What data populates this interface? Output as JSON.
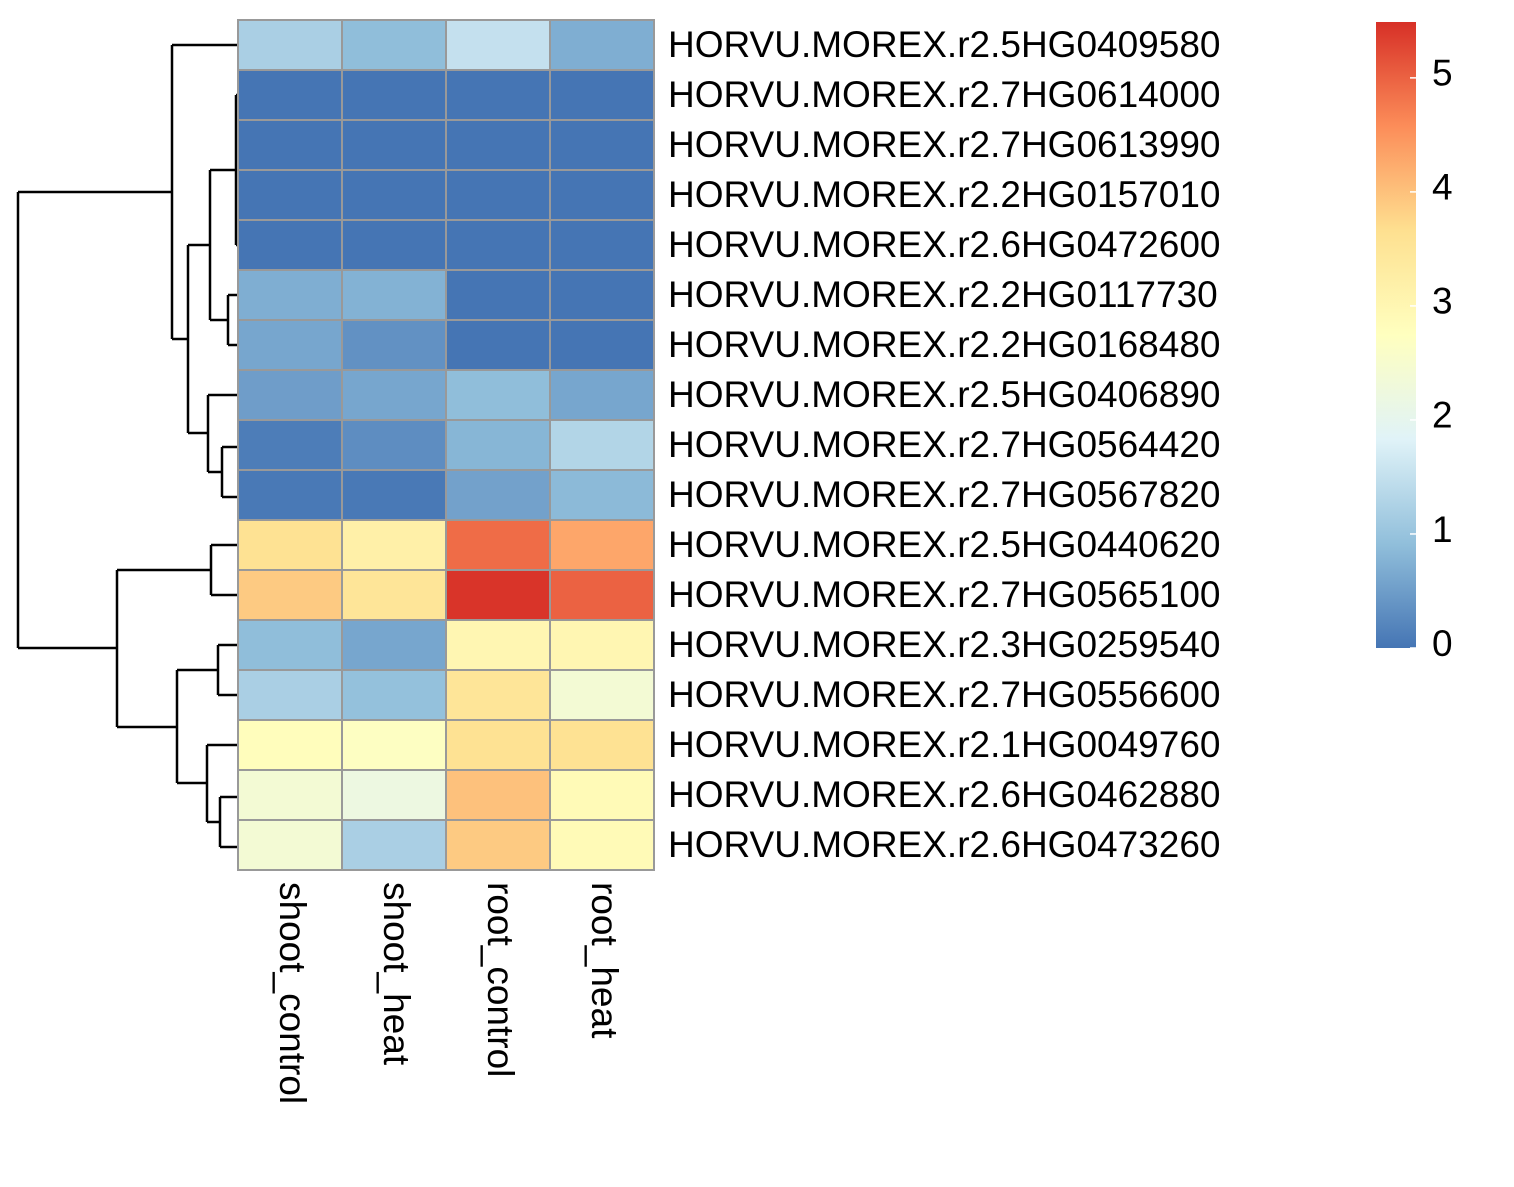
{
  "chart_data": {
    "type": "heatmap",
    "rows": [
      "HORVU.MOREX.r2.5HG0409580",
      "HORVU.MOREX.r2.7HG0614000",
      "HORVU.MOREX.r2.7HG0613990",
      "HORVU.MOREX.r2.2HG0157010",
      "HORVU.MOREX.r2.6HG0472600",
      "HORVU.MOREX.r2.2HG0117730",
      "HORVU.MOREX.r2.2HG0168480",
      "HORVU.MOREX.r2.5HG0406890",
      "HORVU.MOREX.r2.7HG0564420",
      "HORVU.MOREX.r2.7HG0567820",
      "HORVU.MOREX.r2.5HG0440620",
      "HORVU.MOREX.r2.7HG0565100",
      "HORVU.MOREX.r2.3HG0259540",
      "HORVU.MOREX.r2.7HG0556600",
      "HORVU.MOREX.r2.1HG0049760",
      "HORVU.MOREX.r2.6HG0462880",
      "HORVU.MOREX.r2.6HG0473260"
    ],
    "columns": [
      "shoot_control",
      "shoot_heat",
      "root_control",
      "root_heat"
    ],
    "values": [
      [
        1.2,
        0.9,
        1.5,
        0.7
      ],
      [
        0,
        0,
        0,
        0
      ],
      [
        0,
        0,
        0,
        0
      ],
      [
        0,
        0,
        0,
        0
      ],
      [
        0,
        0,
        0,
        0
      ],
      [
        0.7,
        0.75,
        0,
        0
      ],
      [
        0.6,
        0.35,
        0,
        0
      ],
      [
        0.5,
        0.6,
        0.9,
        0.6
      ],
      [
        0.1,
        0.3,
        0.8,
        1.3
      ],
      [
        0.05,
        0.05,
        0.55,
        0.85
      ],
      [
        3.6,
        3.2,
        4.9,
        4.3
      ],
      [
        3.9,
        3.5,
        5.45,
        5.0
      ],
      [
        0.9,
        0.6,
        3.0,
        3.0
      ],
      [
        1.2,
        0.95,
        3.5,
        2.4
      ],
      [
        2.8,
        2.7,
        3.6,
        3.6
      ],
      [
        2.4,
        2.2,
        4.0,
        2.9
      ],
      [
        2.4,
        1.2,
        3.9,
        2.9
      ]
    ],
    "colors": [
      "#4575B4",
      "#91BFDB",
      "#E0F3F8",
      "#FFFFBF",
      "#FEE090",
      "#FC8D59",
      "#D73027"
    ],
    "zlim": [
      0,
      5.49
    ],
    "zticks": [
      0,
      1,
      2,
      3,
      4,
      5
    ]
  }
}
